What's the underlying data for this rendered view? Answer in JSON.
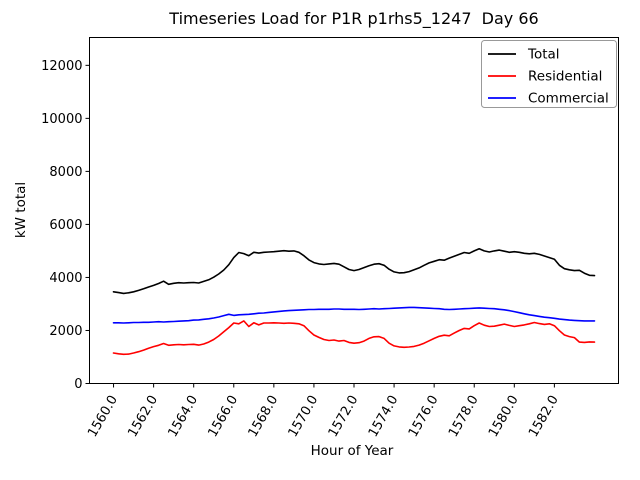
{
  "chart_data": {
    "type": "line",
    "title": "Timeseries Load for P1R p1rhs5_1247  Day 66",
    "xlabel": "Hour of Year",
    "ylabel": "kW total",
    "xlim": [
      1558.8,
      1585.2
    ],
    "ylim": [
      0,
      13050
    ],
    "grid": false,
    "legend_position": "upper right",
    "xtick_values": [
      1560,
      1562,
      1564,
      1566,
      1568,
      1570,
      1572,
      1574,
      1576,
      1578,
      1580,
      1582
    ],
    "xtick_labels": [
      "1560.0",
      "1562.0",
      "1564.0",
      "1566.0",
      "1568.0",
      "1570.0",
      "1572.0",
      "1574.0",
      "1576.0",
      "1578.0",
      "1580.0",
      "1582.0"
    ],
    "ytick_values": [
      0,
      2000,
      4000,
      6000,
      8000,
      10000,
      12000
    ],
    "ytick_labels": [
      "0",
      "2000",
      "4000",
      "6000",
      "8000",
      "10000",
      "12000"
    ],
    "x_start": 1560.0,
    "x_step": 0.25,
    "x_end": 1584.0,
    "series": [
      {
        "name": "Total",
        "color": "#000000",
        "values": [
          3460,
          3430,
          3400,
          3420,
          3460,
          3510,
          3570,
          3640,
          3700,
          3770,
          3860,
          3740,
          3780,
          3800,
          3790,
          3800,
          3810,
          3790,
          3850,
          3910,
          4010,
          4130,
          4280,
          4480,
          4750,
          4940,
          4900,
          4820,
          4950,
          4920,
          4950,
          4960,
          4970,
          4990,
          5010,
          4990,
          5000,
          4950,
          4820,
          4660,
          4560,
          4510,
          4490,
          4510,
          4530,
          4500,
          4400,
          4300,
          4260,
          4300,
          4370,
          4440,
          4500,
          4520,
          4460,
          4310,
          4210,
          4170,
          4180,
          4220,
          4290,
          4360,
          4460,
          4550,
          4610,
          4670,
          4650,
          4730,
          4800,
          4870,
          4940,
          4910,
          5000,
          5080,
          5000,
          4960,
          5000,
          5030,
          4990,
          4950,
          4970,
          4950,
          4910,
          4890,
          4910,
          4870,
          4810,
          4750,
          4690,
          4460,
          4330,
          4290,
          4260,
          4270,
          4160,
          4080,
          4070
        ]
      },
      {
        "name": "Residential",
        "color": "#ff0000",
        "values": [
          1150,
          1120,
          1100,
          1110,
          1150,
          1200,
          1260,
          1330,
          1390,
          1440,
          1510,
          1440,
          1460,
          1470,
          1460,
          1470,
          1480,
          1450,
          1490,
          1560,
          1660,
          1790,
          1950,
          2110,
          2280,
          2250,
          2360,
          2150,
          2290,
          2210,
          2280,
          2280,
          2290,
          2280,
          2270,
          2280,
          2270,
          2250,
          2180,
          1990,
          1830,
          1740,
          1660,
          1620,
          1640,
          1600,
          1620,
          1550,
          1520,
          1540,
          1600,
          1700,
          1760,
          1770,
          1700,
          1520,
          1420,
          1380,
          1365,
          1375,
          1400,
          1450,
          1520,
          1610,
          1700,
          1780,
          1820,
          1800,
          1900,
          2000,
          2080,
          2060,
          2180,
          2280,
          2200,
          2150,
          2160,
          2200,
          2240,
          2190,
          2150,
          2180,
          2210,
          2250,
          2300,
          2260,
          2230,
          2250,
          2180,
          1990,
          1830,
          1770,
          1730,
          1560,
          1550,
          1570,
          1560
        ]
      },
      {
        "name": "Commercial",
        "color": "#0000ff",
        "values": [
          2290,
          2290,
          2280,
          2290,
          2300,
          2300,
          2310,
          2310,
          2320,
          2330,
          2320,
          2330,
          2340,
          2350,
          2360,
          2370,
          2390,
          2400,
          2420,
          2440,
          2470,
          2510,
          2560,
          2610,
          2570,
          2590,
          2600,
          2610,
          2630,
          2650,
          2660,
          2680,
          2700,
          2720,
          2740,
          2750,
          2760,
          2770,
          2780,
          2790,
          2790,
          2800,
          2800,
          2800,
          2810,
          2810,
          2800,
          2800,
          2800,
          2790,
          2800,
          2810,
          2820,
          2810,
          2820,
          2830,
          2840,
          2850,
          2860,
          2870,
          2870,
          2860,
          2850,
          2840,
          2830,
          2820,
          2800,
          2790,
          2800,
          2810,
          2820,
          2830,
          2840,
          2850,
          2840,
          2830,
          2820,
          2800,
          2780,
          2750,
          2710,
          2670,
          2630,
          2590,
          2560,
          2530,
          2500,
          2480,
          2460,
          2430,
          2410,
          2390,
          2380,
          2370,
          2360,
          2360,
          2360
        ]
      }
    ]
  }
}
